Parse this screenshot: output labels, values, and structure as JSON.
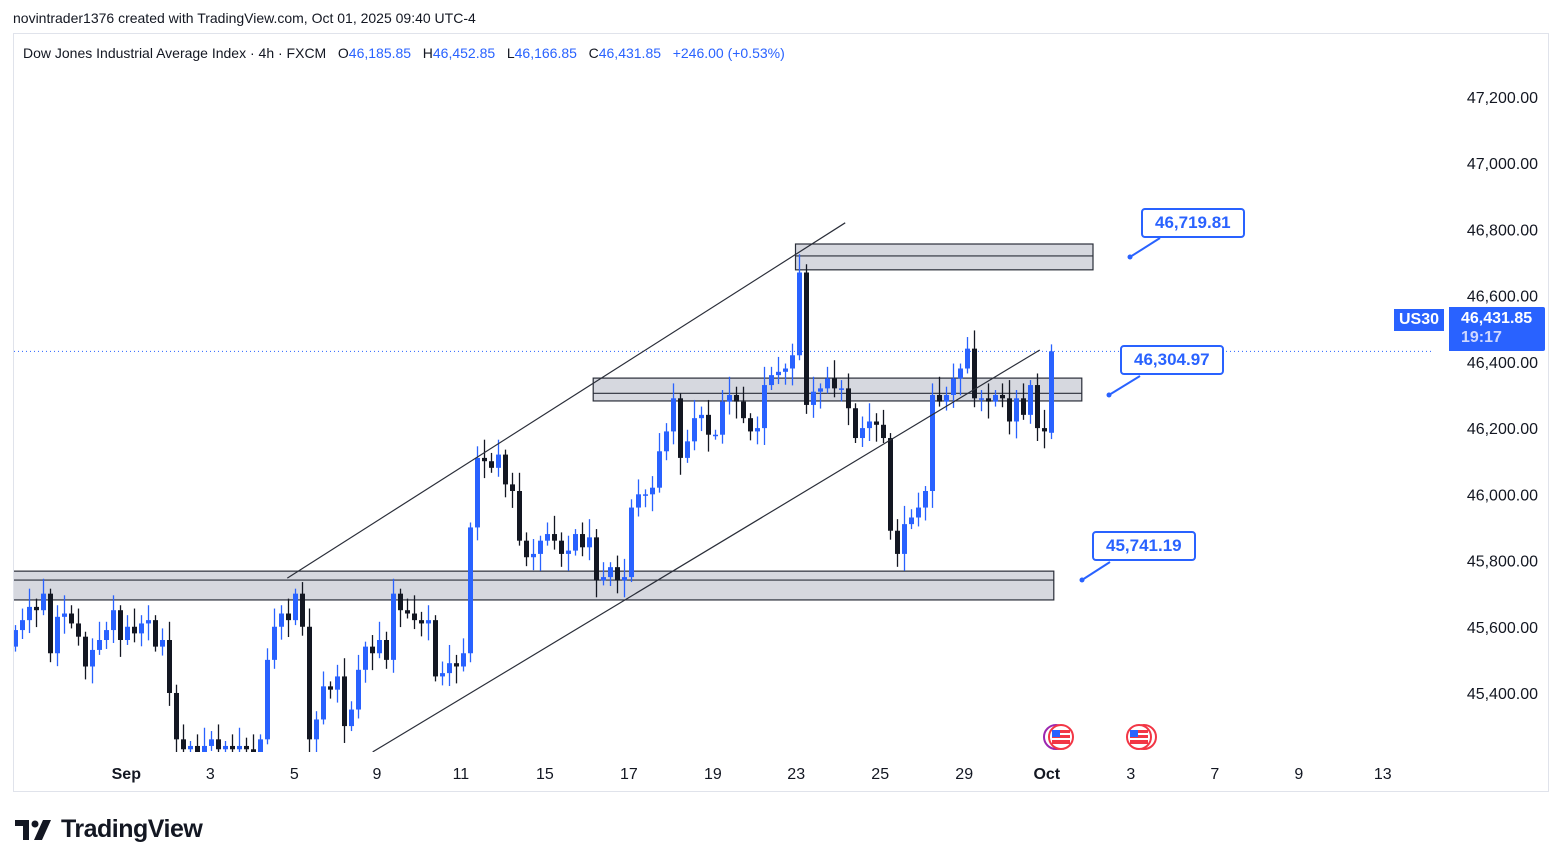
{
  "credit": "novintrader1376 created with TradingView.com, Oct 01, 2025 09:40 UTC-4",
  "legend": {
    "symbol_title": "Dow Jones Industrial Average Index · 4h · FXCM",
    "o_label": "O",
    "o": "46,185.85",
    "h_label": "H",
    "h": "46,452.85",
    "l_label": "L",
    "l": "46,166.85",
    "c_label": "C",
    "c": "46,431.85",
    "change": "+246.00 (+0.53%)"
  },
  "price_tag": {
    "symbol": "US30",
    "price": "46,431.85",
    "countdown": "19:17"
  },
  "callouts": [
    {
      "label": "46,719.81",
      "price": 46720
    },
    {
      "label": "46,304.97",
      "price": 46305
    },
    {
      "label": "45,741.19",
      "price": 45741
    }
  ],
  "logo": "TradingView",
  "colors": {
    "up": "#2962ff",
    "down": "#131722",
    "zone_fill": "#d1d4dc",
    "accent": "#2962ff"
  },
  "event_icons": [
    "us-flag-icon",
    "us-flag-icon"
  ],
  "chart_data": {
    "type": "candlestick",
    "title": "Dow Jones Industrial Average Index · 4h · FXCM",
    "ylim": [
      45220,
      47420
    ],
    "y_ticks": [
      {
        "value": 47200,
        "label": "47,200.00"
      },
      {
        "value": 47000,
        "label": "47,000.00"
      },
      {
        "value": 46800,
        "label": "46,800.00"
      },
      {
        "value": 46600,
        "label": "46,600.00"
      },
      {
        "value": 46400,
        "label": "46,400.00"
      },
      {
        "value": 46200,
        "label": "46,200.00"
      },
      {
        "value": 46000,
        "label": "46,000.00"
      },
      {
        "value": 45800,
        "label": "45,800.00"
      },
      {
        "value": 45600,
        "label": "45,600.00"
      },
      {
        "value": 45400,
        "label": "45,400.00"
      }
    ],
    "x_ticks": [
      {
        "bar": 15.9,
        "label": "Sep",
        "bold": true
      },
      {
        "bar": 27.9,
        "label": "3"
      },
      {
        "bar": 39.9,
        "label": "5"
      },
      {
        "bar": 51.7,
        "label": "9"
      },
      {
        "bar": 63.7,
        "label": "11"
      },
      {
        "bar": 75.7,
        "label": "15"
      },
      {
        "bar": 87.7,
        "label": "17"
      },
      {
        "bar": 99.7,
        "label": "19"
      },
      {
        "bar": 111.6,
        "label": "23"
      },
      {
        "bar": 123.6,
        "label": "25"
      },
      {
        "bar": 135.6,
        "label": "29"
      },
      {
        "bar": 147.4,
        "label": "Oct",
        "bold": true
      },
      {
        "bar": 159.4,
        "label": "3"
      },
      {
        "bar": 171.4,
        "label": "7"
      },
      {
        "bar": 183.4,
        "label": "9"
      },
      {
        "bar": 195.4,
        "label": "13"
      }
    ],
    "first_open": 45540,
    "closes": [
      45590,
      45620,
      45660,
      45650,
      45700,
      45520,
      45630,
      45640,
      45610,
      45570,
      45480,
      45530,
      45560,
      45590,
      45650,
      45560,
      45600,
      45580,
      45610,
      45620,
      45540,
      45560,
      45400,
      45260,
      45230,
      45240,
      45220,
      45240,
      45260,
      45230,
      45240,
      45230,
      45240,
      45230,
      45220,
      45260,
      45500,
      45600,
      45640,
      45620,
      45700,
      45600,
      45260,
      45320,
      45420,
      45410,
      45450,
      45300,
      45350,
      45470,
      45540,
      45520,
      45560,
      45500,
      45700,
      45650,
      45640,
      45620,
      45610,
      45620,
      45450,
      45460,
      45490,
      45480,
      45520,
      45900,
      46110,
      46100,
      46080,
      46120,
      46030,
      46010,
      45860,
      45810,
      45820,
      45860,
      45880,
      45860,
      45820,
      45830,
      45880,
      45840,
      45870,
      45740,
      45750,
      45780,
      45740,
      45750,
      45960,
      46000,
      46000,
      46020,
      46130,
      46190,
      46290,
      46110,
      46160,
      46230,
      46240,
      46180,
      46180,
      46280,
      46300,
      46280,
      46230,
      46190,
      46200,
      46330,
      46360,
      46370,
      46380,
      46420,
      46670,
      46270,
      46310,
      46320,
      46350,
      46320,
      46320,
      46260,
      46170,
      46200,
      46220,
      46210,
      46170,
      45890,
      45820,
      45910,
      45930,
      45960,
      46010,
      46300,
      46280,
      46300,
      46350,
      46380,
      46440,
      46290,
      46290,
      46280,
      46300,
      46290,
      46220,
      46290,
      46240,
      46330,
      46200,
      46190,
      46431.85
    ],
    "last_candle": {
      "open": 46185.85,
      "high": 46452.85,
      "low": 46166.85,
      "close": 46431.85
    },
    "current_price": 46431.85,
    "zones": [
      {
        "from_bar": 111.5,
        "to_bar": 154,
        "top": 46756,
        "bottom": 46678,
        "mid": 46720
      },
      {
        "from_bar": 82.6,
        "to_bar": 152.4,
        "top": 46351,
        "bottom": 46282,
        "mid": 46305
      },
      {
        "from_bar": -0.3,
        "to_bar": 148.4,
        "top": 45768,
        "bottom": 45681,
        "mid": 45741
      }
    ],
    "trendlines": [
      {
        "from": [
          38.9,
          45747
        ],
        "to": [
          118.6,
          46820
        ]
      },
      {
        "from": [
          51.1,
          45222
        ],
        "to": [
          146.4,
          46436
        ]
      }
    ]
  }
}
